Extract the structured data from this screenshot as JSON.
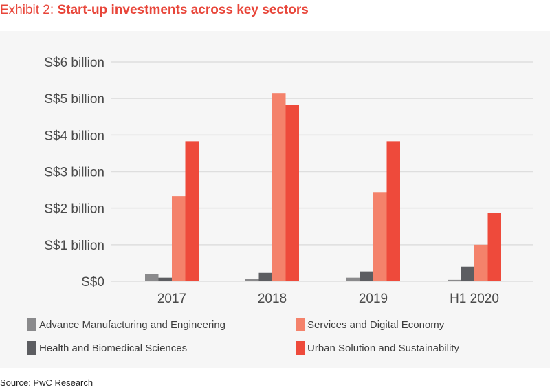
{
  "title": {
    "prefix": "Exhibit 2: ",
    "main": "Start-up investments across key sectors"
  },
  "source": "Source: PwC Research",
  "colors": {
    "title": "#e8463a",
    "panel_bg": "#f6f6f6",
    "grid": "#dedede"
  },
  "chart_data": {
    "type": "bar",
    "title": "Start-up investments across key sectors",
    "xlabel": "",
    "ylabel": "",
    "categories": [
      "2017",
      "2018",
      "2019",
      "H1 2020"
    ],
    "ylim": [
      0,
      6
    ],
    "yticks": [
      0,
      1,
      2,
      3,
      4,
      5,
      6
    ],
    "ytick_labels": [
      "S$0",
      "S$1 billion",
      "S$2 billion",
      "S$3 billion",
      "S$4 billion",
      "S$5 billion",
      "S$6 billion"
    ],
    "grid": true,
    "legend_position": "bottom",
    "units": "S$ billion",
    "series": [
      {
        "name": "Advance Manufacturing and Engineering",
        "color": "#8a8a8c",
        "values": [
          0.19,
          0.06,
          0.1,
          0.04
        ]
      },
      {
        "name": "Health and Biomedical Sciences",
        "color": "#5c5d61",
        "values": [
          0.1,
          0.23,
          0.27,
          0.4
        ]
      },
      {
        "name": "Services and Digital Economy",
        "color": "#f4826b",
        "values": [
          2.33,
          5.15,
          2.44,
          1.0
        ]
      },
      {
        "name": "Urban Solution and Sustainability",
        "color": "#ee4a3b",
        "values": [
          3.83,
          4.83,
          3.83,
          1.88
        ]
      }
    ]
  }
}
